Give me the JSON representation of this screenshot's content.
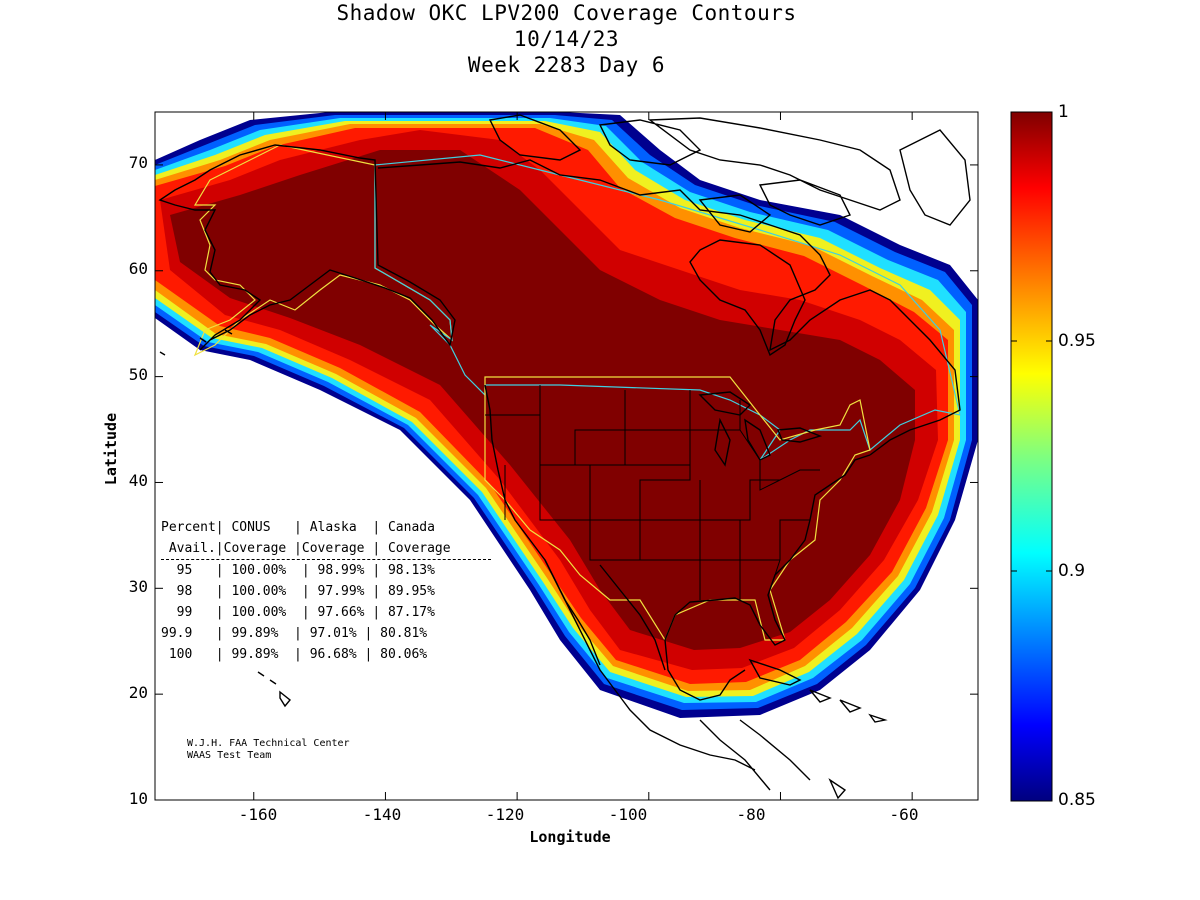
{
  "title": {
    "line1": "Shadow OKC LPV200 Coverage Contours",
    "line2": "10/14/23",
    "line3": "Week 2283 Day 6"
  },
  "axes": {
    "xlabel": "Longitude",
    "ylabel": "Latitude",
    "xlim": [
      -175,
      -50
    ],
    "ylim": [
      10,
      75
    ],
    "xticks": [
      -160,
      -140,
      -120,
      -100,
      -80,
      -60
    ],
    "yticks": [
      10,
      20,
      30,
      40,
      50,
      60,
      70
    ]
  },
  "colorbar": {
    "ticks": [
      "1",
      "0.95",
      "0.9",
      "0.85"
    ],
    "range": [
      0.85,
      1
    ],
    "colormap": "jet"
  },
  "stats_table": {
    "header1": "Percent| CONUS   | Alaska  | Canada",
    "header2": " Avail.|Coverage |Coverage | Coverage",
    "rows": [
      "  95   | 100.00%  | 98.99% | 98.13%",
      "  98   | 100.00%  | 97.99% | 89.95%",
      "  99   | 100.00%  | 97.66% | 87.17%",
      "99.9   | 99.89%  | 97.01% | 80.81%",
      " 100   | 99.89%  | 96.68% | 80.06%"
    ]
  },
  "credit": {
    "line1": "W.J.H. FAA Technical Center",
    "line2": "WAAS Test Team"
  },
  "colors": {
    "core": "#800000",
    "boundary_us_ak": "#f0e040",
    "boundary_canada": "#40d0e0",
    "coast": "#000000"
  }
}
